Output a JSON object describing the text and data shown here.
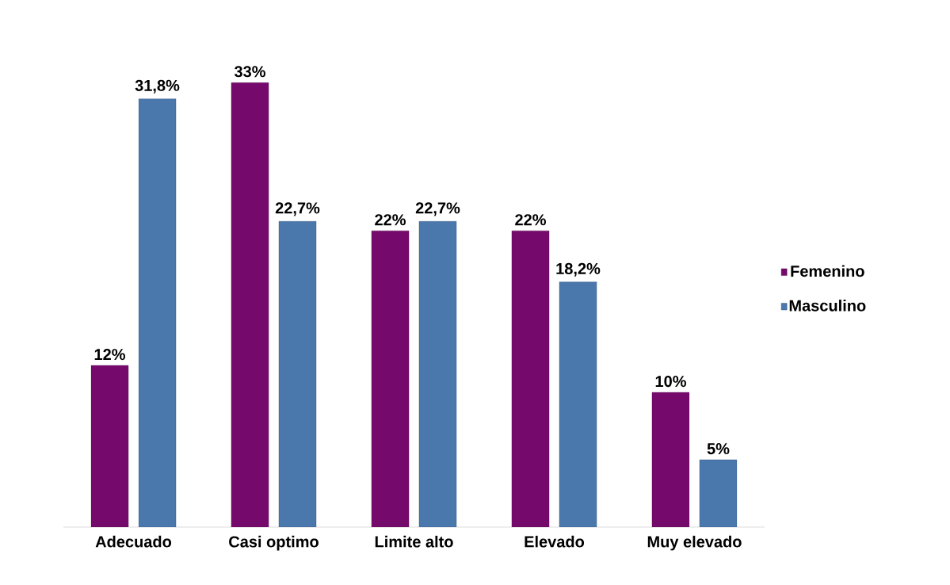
{
  "chart_data": {
    "type": "bar",
    "categories": [
      "Adecuado",
      "Casi optimo",
      "Limite alto",
      "Elevado",
      "Muy elevado"
    ],
    "series": [
      {
        "name": "Femenino",
        "color": "#760a6c",
        "values": [
          12,
          33,
          22,
          22,
          10
        ],
        "value_labels": [
          "12%",
          "33%",
          "22%",
          "22%",
          "10%"
        ]
      },
      {
        "name": "Masculino",
        "color": "#4a78ad",
        "values": [
          31.8,
          22.7,
          22.7,
          18.2,
          5
        ],
        "value_labels": [
          "31,8%",
          "22,7%",
          "22,7%",
          "18,2%",
          "5%"
        ]
      }
    ],
    "legend": "right"
  }
}
